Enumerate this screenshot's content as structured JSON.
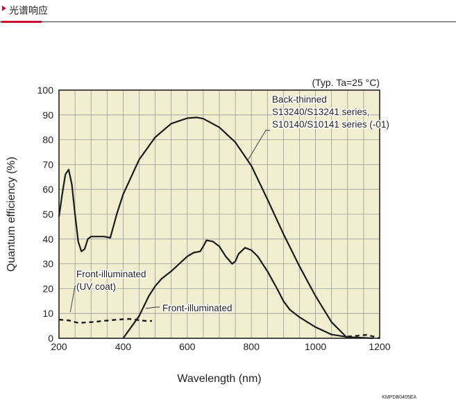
{
  "header": {
    "title": "光谱响应",
    "accent_color": "#c8102e"
  },
  "chart_data": {
    "type": "line",
    "condition_note": "(Typ. Ta=25 °C)",
    "xlabel": "Wavelength (nm)",
    "ylabel": "Quantum efficiency (%)",
    "xlim": [
      200,
      1200
    ],
    "ylim": [
      0,
      100
    ],
    "xticks": [
      200,
      400,
      600,
      800,
      1000,
      1200
    ],
    "yticks": [
      0,
      10,
      20,
      30,
      40,
      50,
      60,
      70,
      80,
      90,
      100
    ],
    "grid": true,
    "code": "KMPDB0405EA",
    "series": [
      {
        "name": "Back-thinned S13240/S13241 series, S10140/S10141 series (-01)",
        "label_lines": [
          "Back-thinned",
          "S13240/S13241 series,",
          "S10140/S10141 series (-01)"
        ],
        "style": "solid",
        "x": [
          200,
          210,
          220,
          230,
          240,
          250,
          260,
          270,
          280,
          290,
          300,
          320,
          340,
          360,
          380,
          400,
          450,
          500,
          550,
          600,
          630,
          650,
          700,
          750,
          800,
          850,
          900,
          950,
          1000,
          1050,
          1100
        ],
        "y": [
          49,
          58,
          66,
          68,
          62,
          50,
          39,
          35,
          36,
          40,
          41,
          41,
          41,
          40.5,
          50,
          58,
          72,
          81,
          86.5,
          88.7,
          89,
          88.5,
          85,
          79,
          69.5,
          56,
          42,
          29,
          17,
          6.5,
          0
        ]
      },
      {
        "name": "Front-illuminated",
        "label_lines": [
          "Front-illuminated"
        ],
        "style": "solid",
        "x": [
          400,
          450,
          480,
          500,
          520,
          550,
          600,
          620,
          640,
          650,
          660,
          680,
          700,
          720,
          740,
          750,
          760,
          780,
          800,
          820,
          850,
          880,
          900,
          920,
          950,
          1000,
          1050,
          1100,
          1150,
          1180
        ],
        "y": [
          0,
          9,
          17,
          21,
          24,
          27,
          33,
          34.5,
          35,
          37,
          39.5,
          39,
          37,
          33,
          30,
          31,
          34,
          36.5,
          35.5,
          33,
          27,
          20,
          15,
          11.5,
          8.5,
          4.5,
          1.5,
          0.5,
          0.2,
          0
        ]
      },
      {
        "name": "Front-illuminated (UV coat)",
        "label_lines": [
          "Front-illuminated",
          "(UV coat)"
        ],
        "style": "dashed",
        "x": [
          200,
          230,
          260,
          300,
          340,
          380,
          420,
          450,
          470,
          490
        ],
        "y": [
          7.5,
          7.2,
          6.2,
          6.5,
          7,
          7.5,
          7.8,
          7.3,
          7,
          7
        ]
      },
      {
        "name": "Front-illuminated (UV coat) tail",
        "label_lines": [],
        "style": "dashed",
        "x": [
          1100,
          1130,
          1160,
          1190,
          1200
        ],
        "y": [
          0.7,
          1.0,
          1.4,
          0.4,
          0
        ]
      }
    ]
  }
}
